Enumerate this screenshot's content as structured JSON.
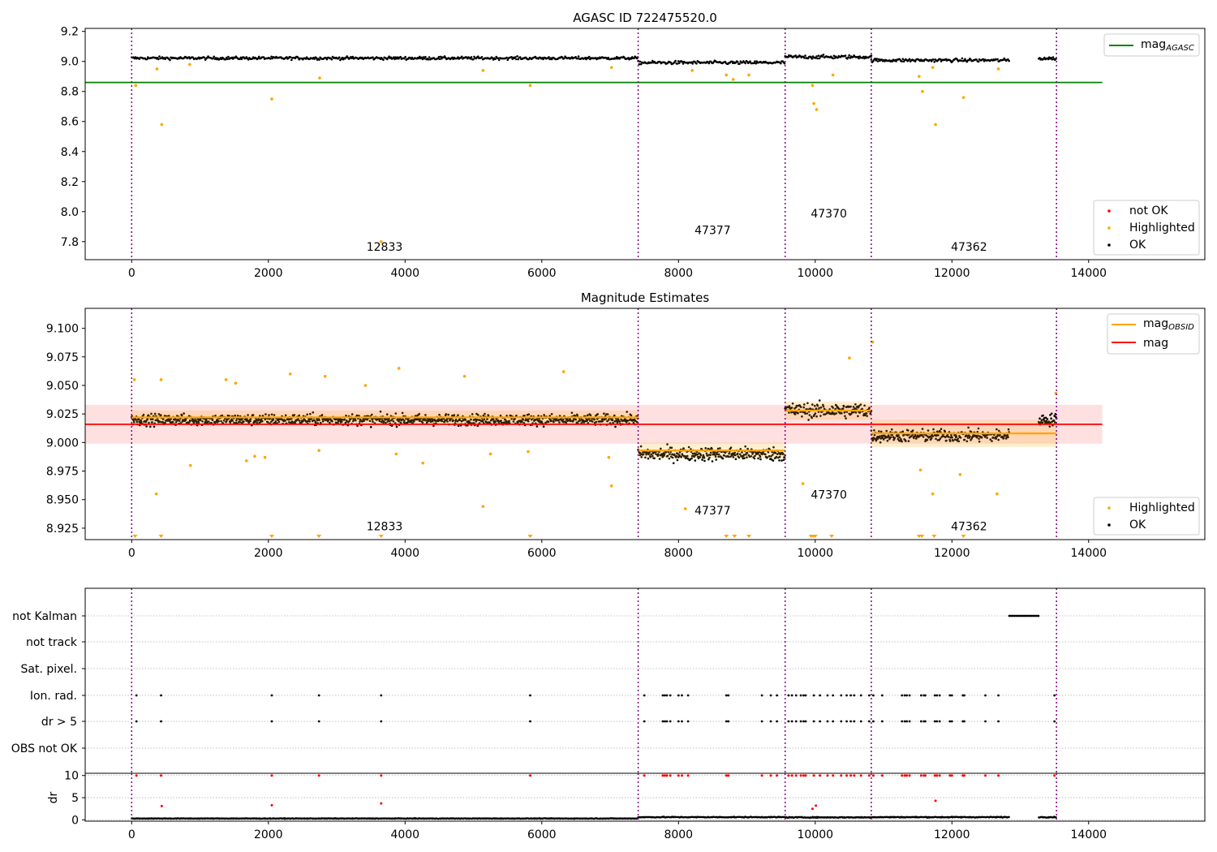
{
  "chart_data": [
    {
      "type": "scatter",
      "title": "AGASC ID 722475520.0",
      "xlabel": "",
      "ylabel": "",
      "xlim": [
        -680,
        15700
      ],
      "ylim": [
        7.68,
        9.22
      ],
      "xticks": [
        0,
        2000,
        4000,
        6000,
        8000,
        10000,
        12000,
        14000
      ],
      "yticks": [
        7.8,
        8.0,
        8.2,
        8.4,
        8.6,
        8.8,
        9.0,
        9.2
      ],
      "ytick_decimals": 1,
      "grid": false,
      "legend_upper": {
        "placement": "upper-right",
        "entries": [
          {
            "label": "mag",
            "sub": "AGASC",
            "color": "#008000",
            "kind": "line"
          }
        ]
      },
      "legend_lower": {
        "placement": "lower-right",
        "entries": [
          {
            "label": "not OK",
            "color": "#ff0000",
            "kind": "dot"
          },
          {
            "label": "Highlighted",
            "color": "#ffa500",
            "kind": "dot"
          },
          {
            "label": "OK",
            "color": "#000000",
            "kind": "dot"
          }
        ]
      },
      "obsid_boundaries": [
        0,
        7410,
        9560,
        10820,
        13530
      ],
      "obsid_labels": [
        {
          "text": "12833",
          "x": 3700,
          "y": 7.74
        },
        {
          "text": "47377",
          "x": 8500,
          "y": 7.85
        },
        {
          "text": "47370",
          "x": 10200,
          "y": 7.96
        },
        {
          "text": "47362",
          "x": 12250,
          "y": 7.74
        }
      ],
      "mag_agasc": {
        "value": 8.86,
        "x_range": [
          -680,
          14200
        ]
      },
      "ok_series": {
        "segments": [
          {
            "x": [
              0,
              7410
            ],
            "mean": 9.022,
            "spread": 0.018
          },
          {
            "x": [
              7410,
              9560
            ],
            "mean": 8.992,
            "spread": 0.02
          },
          {
            "x": [
              9560,
              10820
            ],
            "mean": 9.03,
            "spread": 0.022
          },
          {
            "x": [
              10820,
              12840
            ],
            "mean": 9.008,
            "spread": 0.02
          },
          {
            "x": [
              13270,
              13530
            ],
            "mean": 9.02,
            "spread": 0.02
          }
        ]
      },
      "highlighted_points": [
        [
          60,
          8.84
        ],
        [
          370,
          8.95
        ],
        [
          440,
          8.58
        ],
        [
          850,
          8.98
        ],
        [
          2050,
          8.75
        ],
        [
          2750,
          8.89
        ],
        [
          3650,
          7.8
        ],
        [
          5140,
          8.94
        ],
        [
          5830,
          8.84
        ],
        [
          7020,
          8.96
        ],
        [
          8200,
          8.94
        ],
        [
          8700,
          8.91
        ],
        [
          8800,
          8.88
        ],
        [
          9030,
          8.91
        ],
        [
          9960,
          8.84
        ],
        [
          9980,
          8.72
        ],
        [
          10020,
          8.68
        ],
        [
          10260,
          8.91
        ],
        [
          11520,
          8.9
        ],
        [
          11570,
          8.8
        ],
        [
          11720,
          8.96
        ],
        [
          11760,
          8.58
        ],
        [
          12170,
          8.76
        ],
        [
          12680,
          8.95
        ]
      ]
    },
    {
      "type": "scatter",
      "title": "Magnitude Estimates",
      "xlabel": "",
      "ylabel": "",
      "xlim": [
        -680,
        15700
      ],
      "ylim": [
        8.915,
        9.1175
      ],
      "xticks": [
        0,
        2000,
        4000,
        6000,
        8000,
        10000,
        12000,
        14000
      ],
      "yticks": [
        8.925,
        8.95,
        8.975,
        9.0,
        9.025,
        9.05,
        9.075,
        9.1
      ],
      "ytick_decimals": 3,
      "grid": false,
      "legend_upper": {
        "placement": "upper-right",
        "entries": [
          {
            "label": "mag",
            "sub": "OBSID",
            "color": "#ffa500",
            "kind": "line"
          },
          {
            "label": "mag",
            "color": "#ff0000",
            "kind": "line"
          }
        ]
      },
      "legend_lower": {
        "placement": "lower-right",
        "entries": [
          {
            "label": "Highlighted",
            "color": "#ffa500",
            "kind": "dot"
          },
          {
            "label": "OK",
            "color": "#000000",
            "kind": "dot"
          }
        ]
      },
      "obsid_boundaries": [
        0,
        7410,
        9560,
        10820,
        13530
      ],
      "obsid_labels": [
        {
          "text": "12833",
          "x": 3700,
          "y": 8.923
        },
        {
          "text": "47377",
          "x": 8500,
          "y": 8.937
        },
        {
          "text": "47370",
          "x": 10200,
          "y": 8.951
        },
        {
          "text": "47362",
          "x": 12250,
          "y": 8.923
        }
      ],
      "mag": {
        "value": 9.016,
        "band": [
          8.999,
          9.033
        ],
        "x_range": [
          -680,
          14200
        ]
      },
      "mag_obsid": [
        {
          "x": [
            0,
            7410
          ],
          "value": 9.022,
          "band": [
            9.016,
            9.028
          ]
        },
        {
          "x": [
            7410,
            9560
          ],
          "value": 8.993,
          "band": [
            8.986,
            9.0
          ]
        },
        {
          "x": [
            9560,
            10820
          ],
          "value": 9.028,
          "band": [
            9.02,
            9.036
          ]
        },
        {
          "x": [
            10820,
            13530
          ],
          "value": 9.008,
          "band": [
            8.996,
            9.02
          ]
        }
      ],
      "ok_series": {
        "segments": [
          {
            "x": [
              0,
              7410
            ],
            "mean": 9.02,
            "spread": 0.009
          },
          {
            "x": [
              7410,
              9560
            ],
            "mean": 8.99,
            "spread": 0.011
          },
          {
            "x": [
              9560,
              10820
            ],
            "mean": 9.028,
            "spread": 0.012
          },
          {
            "x": [
              10820,
              12840
            ],
            "mean": 9.006,
            "spread": 0.01
          },
          {
            "x": [
              13270,
              13530
            ],
            "mean": 9.02,
            "spread": 0.01
          }
        ]
      },
      "highlighted_points": [
        [
          40,
          9.055
        ],
        [
          360,
          8.955
        ],
        [
          430,
          9.055
        ],
        [
          860,
          8.98
        ],
        [
          1380,
          9.055
        ],
        [
          1520,
          9.052
        ],
        [
          1680,
          8.984
        ],
        [
          1800,
          8.988
        ],
        [
          1950,
          8.987
        ],
        [
          2320,
          9.06
        ],
        [
          2740,
          8.993
        ],
        [
          2830,
          9.058
        ],
        [
          3420,
          9.05
        ],
        [
          3870,
          8.99
        ],
        [
          3910,
          9.065
        ],
        [
          4260,
          8.982
        ],
        [
          4870,
          9.058
        ],
        [
          5140,
          8.944
        ],
        [
          5250,
          8.99
        ],
        [
          5800,
          8.992
        ],
        [
          6320,
          9.062
        ],
        [
          6980,
          8.987
        ],
        [
          7020,
          8.962
        ],
        [
          8100,
          8.942
        ],
        [
          9820,
          8.964
        ],
        [
          10500,
          9.074
        ],
        [
          10840,
          9.088
        ],
        [
          11540,
          8.976
        ],
        [
          11720,
          8.955
        ],
        [
          12120,
          8.972
        ],
        [
          12660,
          8.955
        ],
        [
          13520,
          9.043
        ]
      ],
      "clipped_markers_x": [
        50,
        430,
        2050,
        2740,
        3650,
        5830,
        8700,
        8820,
        9030,
        9940,
        9970,
        10000,
        10240,
        11520,
        11560,
        11740,
        12170
      ]
    },
    {
      "type": "scatter",
      "title": "",
      "xlabel": "",
      "ylabel": "",
      "xlim": [
        -680,
        15700
      ],
      "xticks": [
        0,
        2000,
        4000,
        6000,
        8000,
        10000,
        12000,
        14000
      ],
      "grid": true,
      "obsid_boundaries": [
        0,
        7410,
        9560,
        10820,
        13530
      ],
      "flag_rows": [
        "not Kalman",
        "not track",
        "Sat. pixel.",
        "Ion. rad.",
        "dr > 5",
        "OBS not OK"
      ],
      "flag_points": {
        "not Kalman": {
          "range": [
            12840,
            13270
          ]
        },
        "Ion. rad.": [
          70,
          430,
          2050,
          2740,
          3650,
          5830,
          7500,
          7770,
          7800,
          7830,
          7880,
          8000,
          8050,
          8140,
          8700,
          8730,
          9220,
          9350,
          9440,
          9610,
          9660,
          9720,
          9790,
          9830,
          9860,
          9980,
          10070,
          10180,
          10260,
          10380,
          10460,
          10520,
          10570,
          10670,
          10790,
          10850,
          10980,
          11270,
          11310,
          11340,
          11380,
          11550,
          11590,
          11610,
          11750,
          11780,
          11820,
          11970,
          12000,
          12160,
          12180,
          12490,
          12680,
          13500
        ],
        "dr > 5": [
          70,
          430,
          2050,
          2740,
          3650,
          5830,
          7500,
          7770,
          7800,
          7830,
          7880,
          8000,
          8050,
          8140,
          8700,
          8730,
          9220,
          9350,
          9440,
          9610,
          9660,
          9720,
          9790,
          9830,
          9860,
          9980,
          10070,
          10180,
          10260,
          10380,
          10460,
          10520,
          10570,
          10670,
          10790,
          10850,
          10980,
          11270,
          11310,
          11340,
          11380,
          11550,
          11590,
          11610,
          11750,
          11780,
          11820,
          11970,
          12000,
          12160,
          12180,
          12490,
          12680,
          13500
        ]
      }
    },
    {
      "type": "scatter",
      "title": "",
      "xlabel": "",
      "ylabel": "dr",
      "xlim": [
        -680,
        15700
      ],
      "ylim": [
        -0.3,
        10.5
      ],
      "xticks": [
        0,
        2000,
        4000,
        6000,
        8000,
        10000,
        12000,
        14000
      ],
      "yticks": [
        0,
        5,
        10
      ],
      "grid": true,
      "obsid_boundaries": [
        0,
        7410,
        9560,
        10820,
        13530
      ],
      "dr_clip": 10,
      "dr_ok_segments": [
        {
          "x": [
            0,
            7410
          ],
          "mean": 0.3,
          "spread": 0.12
        },
        {
          "x": [
            7410,
            9560
          ],
          "mean": 0.6,
          "spread": 0.2
        },
        {
          "x": [
            9560,
            10820
          ],
          "mean": 0.55,
          "spread": 0.2
        },
        {
          "x": [
            10820,
            12840
          ],
          "mean": 0.6,
          "spread": 0.2
        },
        {
          "x": [
            13270,
            13530
          ],
          "mean": 0.6,
          "spread": 0.2
        }
      ],
      "dr_red_points": [
        [
          70,
          10
        ],
        [
          430,
          10
        ],
        [
          2050,
          10
        ],
        [
          2740,
          10
        ],
        [
          3650,
          10
        ],
        [
          5830,
          10
        ],
        [
          7500,
          10
        ],
        [
          7770,
          10
        ],
        [
          7800,
          10
        ],
        [
          7830,
          10
        ],
        [
          7880,
          10
        ],
        [
          8000,
          10
        ],
        [
          8050,
          10
        ],
        [
          8140,
          10
        ],
        [
          8700,
          10
        ],
        [
          8730,
          10
        ],
        [
          9220,
          10
        ],
        [
          9350,
          10
        ],
        [
          9440,
          10
        ],
        [
          9610,
          10
        ],
        [
          9660,
          10
        ],
        [
          9720,
          10
        ],
        [
          9790,
          10
        ],
        [
          9830,
          10
        ],
        [
          9860,
          10
        ],
        [
          9980,
          10
        ],
        [
          10070,
          10
        ],
        [
          10180,
          10
        ],
        [
          10260,
          10
        ],
        [
          10380,
          10
        ],
        [
          10460,
          10
        ],
        [
          10520,
          10
        ],
        [
          10570,
          10
        ],
        [
          10670,
          10
        ],
        [
          10790,
          10
        ],
        [
          10850,
          10
        ],
        [
          10980,
          10
        ],
        [
          11270,
          10
        ],
        [
          11310,
          10
        ],
        [
          11340,
          10
        ],
        [
          11380,
          10
        ],
        [
          11550,
          10
        ],
        [
          11590,
          10
        ],
        [
          11610,
          10
        ],
        [
          11750,
          10
        ],
        [
          11780,
          10
        ],
        [
          11820,
          10
        ],
        [
          11970,
          10
        ],
        [
          12000,
          10
        ],
        [
          12160,
          10
        ],
        [
          12180,
          10
        ],
        [
          12490,
          10
        ],
        [
          12680,
          10
        ],
        [
          13500,
          10
        ],
        [
          440,
          3.1
        ],
        [
          2050,
          3.3
        ],
        [
          3650,
          3.7
        ],
        [
          9960,
          2.5
        ],
        [
          10010,
          3.2
        ],
        [
          11760,
          4.3
        ]
      ]
    }
  ]
}
